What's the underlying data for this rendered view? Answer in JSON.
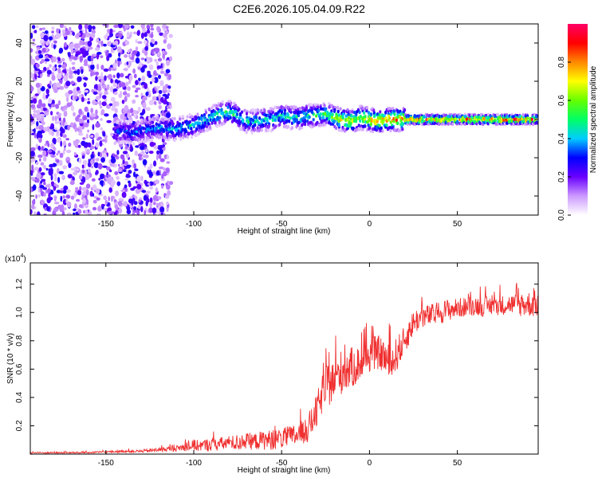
{
  "figure_title": "C2E6.2026.105.04.09.R22",
  "colormap_stops": [
    "#ffffff",
    "#cc99ff",
    "#6a00ff",
    "#0000ff",
    "#00ccff",
    "#00ff66",
    "#66ff00",
    "#ffff00",
    "#ff8800",
    "#ff0000",
    "#ff0066"
  ],
  "line_color": "#f03030",
  "chart_data": [
    {
      "type": "heatmap",
      "title": "C2E6.2026.105.04.09.R22",
      "xlabel": "Height of straight line (km)",
      "ylabel": "Frequency (Hz)",
      "xlim": [
        -193,
        96
      ],
      "ylim": [
        -50,
        50
      ],
      "xticks": [
        -150,
        -100,
        -50,
        0,
        50
      ],
      "yticks": [
        -40,
        -20,
        0,
        20,
        40
      ],
      "colorbar": {
        "label": "Normalized spectral amplitude",
        "range": [
          0,
          1
        ],
        "ticks": [
          "0.0",
          "0.2",
          "0.4",
          "0.6",
          "0.8"
        ],
        "tick_values": [
          0.0,
          0.2,
          0.4,
          0.6,
          0.8
        ]
      },
      "ridge": {
        "x": [
          -145,
          -140,
          -135,
          -130,
          -125,
          -120,
          -115,
          -110,
          -105,
          -100,
          -95,
          -90,
          -85,
          -80,
          -75,
          -70,
          -65,
          -60,
          -55,
          -50,
          -45,
          -40,
          -35,
          -30,
          -25,
          -20,
          -15,
          -10,
          -5,
          0,
          5,
          10,
          20,
          40,
          60,
          95
        ],
        "frequency": [
          -7,
          -6,
          -7,
          -6,
          -5,
          -4,
          -5,
          -5,
          -4,
          -3,
          -1,
          1,
          3,
          4,
          2,
          -1,
          -1,
          0,
          0,
          2,
          1,
          1,
          2,
          2,
          3,
          1,
          0,
          -1,
          1,
          0,
          -1,
          0,
          0,
          0,
          0,
          0
        ],
        "amplitude": [
          0.35,
          0.4,
          0.38,
          0.4,
          0.4,
          0.42,
          0.42,
          0.45,
          0.45,
          0.5,
          0.5,
          0.5,
          0.55,
          0.55,
          0.5,
          0.5,
          0.5,
          0.5,
          0.5,
          0.52,
          0.52,
          0.55,
          0.55,
          0.55,
          0.55,
          0.7,
          0.75,
          0.75,
          0.75,
          0.78,
          0.8,
          0.85,
          0.9,
          0.92,
          0.92,
          0.92
        ]
      }
    },
    {
      "type": "line",
      "xlabel": "Height of straight line (km)",
      "ylabel": "SNR (10 * v/v)",
      "y_multiplier": "(x10",
      "y_multiplier_exp": "4",
      "y_multiplier_close": ")",
      "xlim": [
        -193,
        96
      ],
      "ylim": [
        0,
        1.35
      ],
      "xticks": [
        -150,
        -100,
        -50,
        0,
        50
      ],
      "yticks": [
        0.2,
        0.4,
        0.6,
        0.8,
        1.0,
        1.2
      ],
      "ytick_labels": [
        "0.2",
        "0.4",
        "0.6",
        "0.8",
        "1.0",
        "1.2"
      ],
      "series": [
        {
          "name": "SNR",
          "x": [
            -193,
            -180,
            -160,
            -140,
            -130,
            -120,
            -110,
            -100,
            -95,
            -90,
            -85,
            -80,
            -75,
            -70,
            -65,
            -60,
            -55,
            -50,
            -45,
            -40,
            -35,
            -30,
            -27,
            -24,
            -20,
            -16,
            -12,
            -8,
            -4,
            0,
            4,
            8,
            12,
            16,
            20,
            25,
            30,
            35,
            40,
            45,
            50,
            55,
            60,
            65,
            70,
            75,
            80,
            85,
            90,
            96
          ],
          "mean": [
            0.01,
            0.01,
            0.01,
            0.02,
            0.02,
            0.03,
            0.04,
            0.06,
            0.06,
            0.07,
            0.07,
            0.08,
            0.08,
            0.09,
            0.09,
            0.1,
            0.1,
            0.11,
            0.12,
            0.14,
            0.18,
            0.3,
            0.42,
            0.48,
            0.52,
            0.58,
            0.6,
            0.62,
            0.65,
            0.7,
            0.72,
            0.7,
            0.62,
            0.72,
            0.8,
            0.93,
            0.97,
            0.98,
            1.0,
            1.02,
            1.03,
            1.04,
            1.05,
            1.04,
            1.05,
            1.05,
            1.06,
            1.05,
            1.06,
            1.06
          ],
          "noise_amplitude": [
            0.005,
            0.005,
            0.006,
            0.008,
            0.01,
            0.015,
            0.02,
            0.04,
            0.04,
            0.05,
            0.05,
            0.05,
            0.06,
            0.06,
            0.06,
            0.07,
            0.07,
            0.07,
            0.08,
            0.08,
            0.1,
            0.12,
            0.14,
            0.15,
            0.15,
            0.16,
            0.15,
            0.14,
            0.12,
            0.12,
            0.12,
            0.12,
            0.14,
            0.12,
            0.1,
            0.09,
            0.08,
            0.08,
            0.08,
            0.08,
            0.07,
            0.07,
            0.07,
            0.07,
            0.07,
            0.07,
            0.07,
            0.08,
            0.09,
            0.1
          ]
        }
      ]
    }
  ]
}
